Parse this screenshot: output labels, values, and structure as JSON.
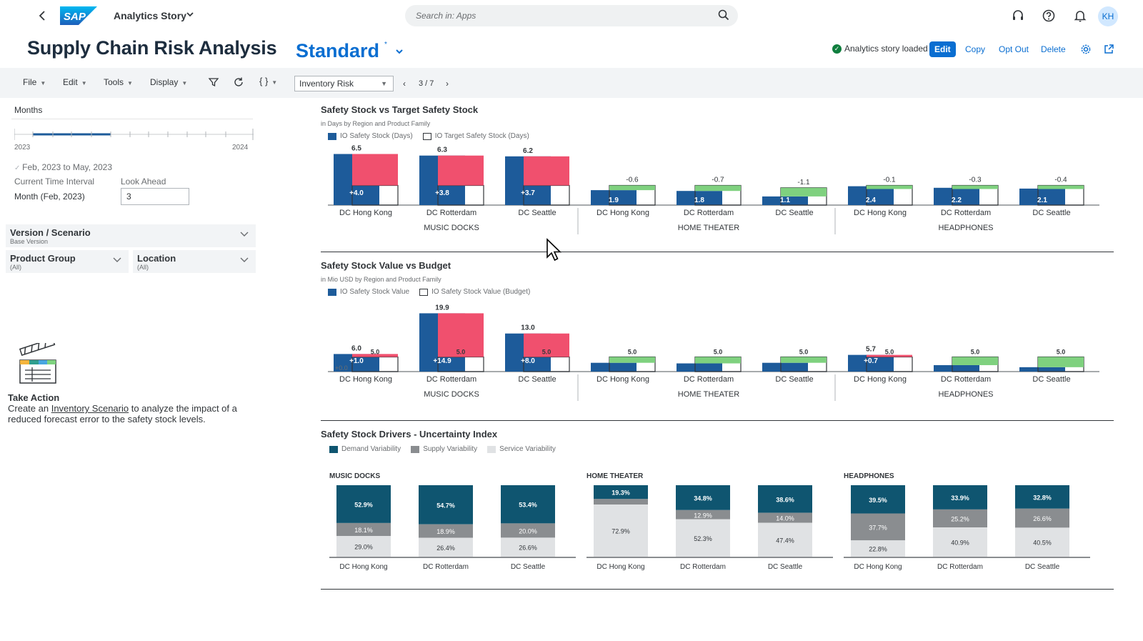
{
  "shell": {
    "app_title": "Analytics Story",
    "search_placeholder": "Search in: Apps",
    "avatar_initials": "KH"
  },
  "header": {
    "title": "Supply Chain Risk Analysis",
    "variant": "Standard",
    "variant_marker": "*",
    "status": "Analytics story loaded",
    "buttons": {
      "edit": "Edit",
      "copy": "Copy",
      "opt_out": "Opt Out",
      "delete": "Delete"
    }
  },
  "toolbar": {
    "menus": [
      "File",
      "Edit",
      "Tools",
      "Display"
    ],
    "page_select": "Inventory Risk",
    "pager": "3 / 7"
  },
  "left": {
    "months_label": "Months",
    "year_start": "2023",
    "year_end": "2024",
    "range": "Feb, 2023 to May, 2023",
    "current_interval_label": "Current Time Interval",
    "look_ahead_label": "Look Ahead",
    "current_interval_value": "Month (Feb, 2023)",
    "look_ahead_value": "3",
    "version_title": "Version / Scenario",
    "version_sub": "Base Version",
    "product_group_title": "Product Group",
    "product_group_sub": "(All)",
    "location_title": "Location",
    "location_sub": "(All)",
    "take_action_title": "Take Action",
    "take_action_pre": "Create an ",
    "take_action_link": "Inventory Scenario",
    "take_action_post": " to analyze the impact of a reduced forecast error to the safety stock levels."
  },
  "colors": {
    "accent": "#0a6ed1",
    "actual": "#1d5b9a",
    "negative": "#f0506e",
    "positive": "#7fd17f",
    "demand": "#0f5570",
    "supply": "#8a8d90",
    "service": "#e0e2e4"
  },
  "chart_data": [
    {
      "type": "bar",
      "title": "Safety Stock vs Target Safety Stock",
      "subtitle": "in Days by Region and Product Family",
      "legend": [
        "IO Safety Stock (Days)",
        "IO Target Safety Stock (Days)"
      ],
      "groups": [
        "MUSIC DOCKS",
        "HOME THEATER",
        "HEADPHONES"
      ],
      "categories": [
        "DC Hong Kong",
        "DC Rotterdam",
        "DC Seattle",
        "DC Hong Kong",
        "DC Rotterdam",
        "DC Seattle",
        "DC Hong Kong",
        "DC Rotterdam",
        "DC Seattle"
      ],
      "series": [
        {
          "name": "IO Safety Stock (Days)",
          "values": [
            6.5,
            6.3,
            6.2,
            1.9,
            1.8,
            1.1,
            2.4,
            2.2,
            2.1
          ]
        },
        {
          "name": "IO Target Safety Stock (Days)",
          "values": [
            2.5,
            2.5,
            2.5,
            2.5,
            2.5,
            2.2,
            2.5,
            2.5,
            2.5
          ]
        }
      ],
      "variance_labels": [
        "+4.0",
        "+3.8",
        "+3.7",
        "-0.6",
        "-0.7",
        "-1.1",
        "-0.1",
        "-0.3",
        "-0.4"
      ],
      "ylim": [
        0,
        7
      ]
    },
    {
      "type": "bar",
      "title": "Safety Stock Value vs Budget",
      "subtitle": "in Mio USD by Region and Product Family",
      "legend": [
        "IO Safety Stock Value",
        "IO Safety Stock Value (Budget)"
      ],
      "groups": [
        "MUSIC DOCKS",
        "HOME THEATER",
        "HEADPHONES"
      ],
      "categories": [
        "DC Hong Kong",
        "DC Rotterdam",
        "DC Seattle",
        "DC Hong Kong",
        "DC Rotterdam",
        "DC Seattle",
        "DC Hong Kong",
        "DC Rotterdam",
        "DC Seattle"
      ],
      "series": [
        {
          "name": "IO Safety Stock Value",
          "values": [
            6.0,
            19.9,
            13.0,
            3.0,
            2.8,
            3.0,
            5.7,
            2.2,
            1.5
          ]
        },
        {
          "name": "IO Safety Stock Value (Budget)",
          "values": [
            5.0,
            5.0,
            5.0,
            5.0,
            5.0,
            5.0,
            5.0,
            5.0,
            5.0
          ]
        }
      ],
      "variance_labels": [
        "+1.0",
        "+14.9",
        "+8.0",
        "",
        "",
        "",
        "+0.7",
        "",
        ""
      ],
      "budget_labels": [
        "5.0",
        "5.0",
        "5.0",
        "5.0",
        "5.0",
        "5.0",
        "5.0",
        "5.0",
        "5.0"
      ],
      "value_labels": [
        "6.0",
        "19.9",
        "13.0",
        "",
        "",
        "",
        "5.7",
        "",
        ""
      ],
      "extra_label": "+0.0",
      "ylim": [
        0,
        20
      ]
    },
    {
      "type": "bar",
      "stacked": true,
      "title": "Safety Stock Drivers - Uncertainty Index",
      "legend": [
        "Demand Variability",
        "Supply Variability",
        "Service Variability"
      ],
      "groups": [
        "MUSIC DOCKS",
        "HOME THEATER",
        "HEADPHONES"
      ],
      "categories": [
        "DC Hong Kong",
        "DC Rotterdam",
        "DC Seattle",
        "DC Hong Kong",
        "DC Rotterdam",
        "DC Seattle",
        "DC Hong Kong",
        "DC Rotterdam",
        "DC Seattle"
      ],
      "series": [
        {
          "name": "Demand Variability",
          "values": [
            52.9,
            54.7,
            53.4,
            19.3,
            34.8,
            38.6,
            39.5,
            33.9,
            32.8
          ]
        },
        {
          "name": "Supply Variability",
          "values": [
            18.1,
            18.9,
            20.0,
            7.8,
            12.9,
            14.0,
            37.7,
            25.2,
            26.6
          ]
        },
        {
          "name": "Service Variability",
          "values": [
            29.0,
            26.4,
            26.6,
            72.9,
            52.3,
            47.4,
            22.8,
            40.9,
            40.5
          ]
        }
      ],
      "labels": {
        "demand": [
          "52.9%",
          "54.7%",
          "53.4%",
          "19.3%",
          "34.8%",
          "38.6%",
          "39.5%",
          "33.9%",
          "32.8%"
        ],
        "supply": [
          "18.1%",
          "18.9%",
          "20.0%",
          "",
          "12.9%",
          "14.0%",
          "37.7%",
          "25.2%",
          "26.6%"
        ],
        "service": [
          "29.0%",
          "26.4%",
          "26.6%",
          "72.9%",
          "52.3%",
          "47.4%",
          "22.8%",
          "40.9%",
          "40.5%"
        ]
      },
      "ylim": [
        0,
        100
      ]
    }
  ]
}
